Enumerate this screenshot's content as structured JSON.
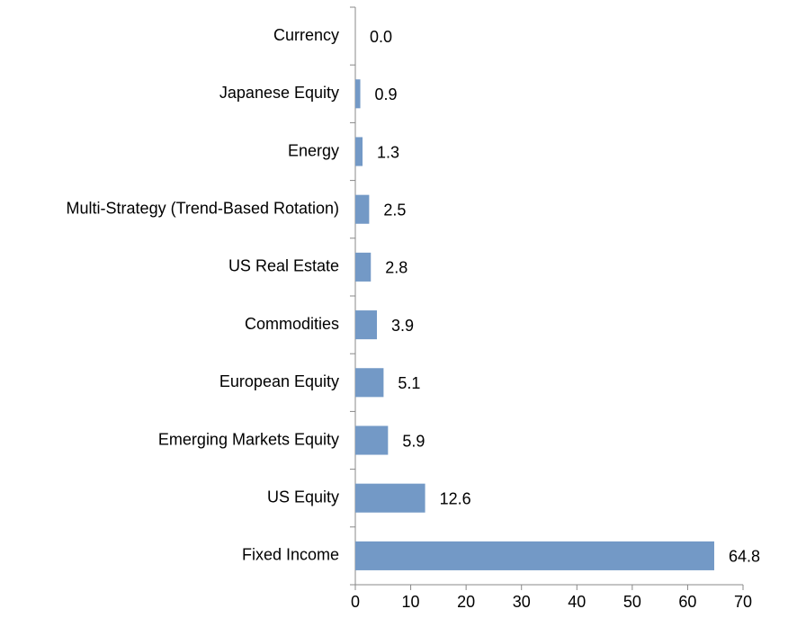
{
  "chart_data": {
    "type": "bar",
    "orientation": "horizontal",
    "categories": [
      "Currency",
      "Japanese Equity",
      "Energy",
      "Multi-Strategy (Trend-Based Rotation)",
      "US Real Estate",
      "Commodities",
      "European Equity",
      "Emerging Markets Equity",
      "US Equity",
      "Fixed Income"
    ],
    "values": [
      0.0,
      0.9,
      1.3,
      2.5,
      2.8,
      3.9,
      5.1,
      5.9,
      12.6,
      64.8
    ],
    "value_labels": [
      "0.0",
      "0.9",
      "1.3",
      "2.5",
      "2.8",
      "3.9",
      "5.1",
      "5.9",
      "12.6",
      "64.8"
    ],
    "color": "#7399c6",
    "xlim": [
      0,
      70
    ],
    "xticks": [
      0,
      10,
      20,
      30,
      40,
      50,
      60,
      70
    ],
    "grid": false
  }
}
